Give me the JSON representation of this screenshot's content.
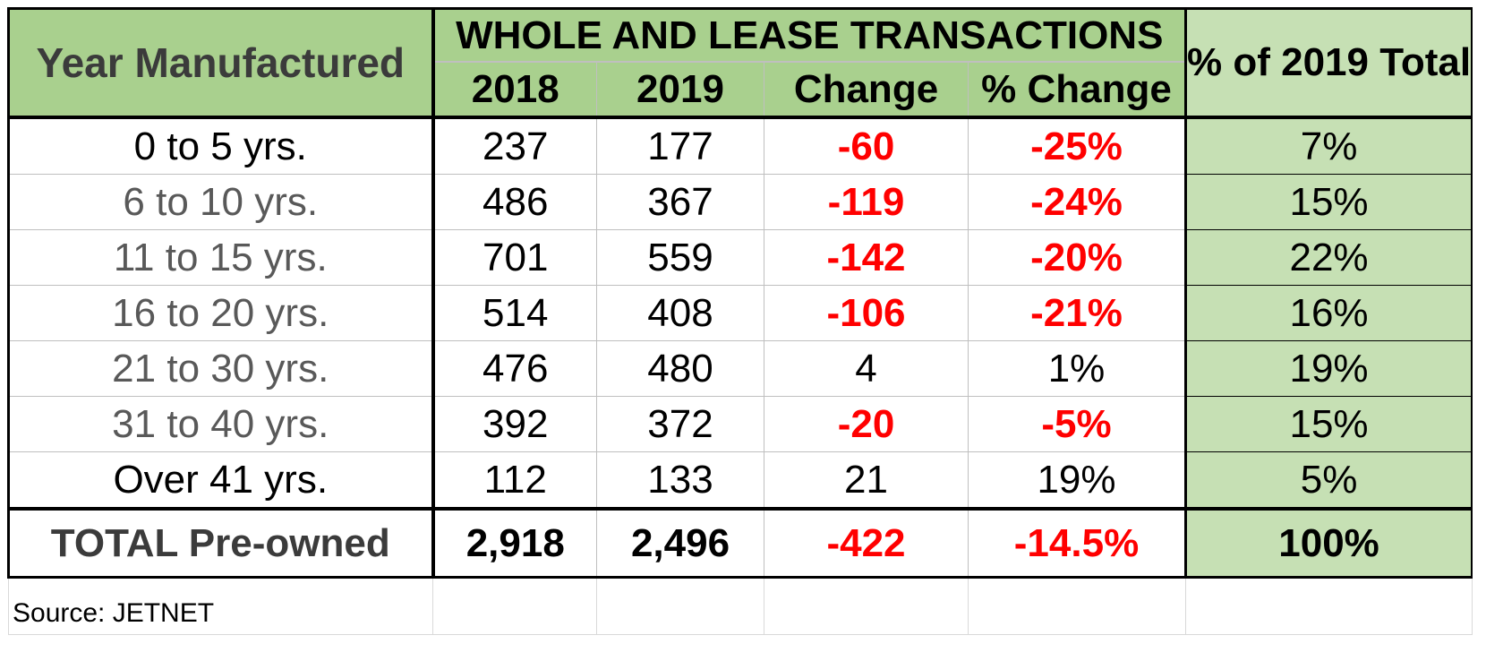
{
  "header": {
    "year_label": "Year Manufactured",
    "group_label": "WHOLE AND LEASE TRANSACTIONS",
    "columns": [
      "2018",
      "2019",
      "Change",
      "% Change"
    ],
    "pct_total_label": "% of 2019 Total"
  },
  "rows": [
    {
      "label": "0 to 5 yrs.",
      "y2018": "237",
      "y2019": "177",
      "change": "-60",
      "pct_change": "-25%",
      "pct_total": "7%"
    },
    {
      "label": "6 to 10 yrs.",
      "y2018": "486",
      "y2019": "367",
      "change": "-119",
      "pct_change": "-24%",
      "pct_total": "15%"
    },
    {
      "label": "11 to 15 yrs.",
      "y2018": "701",
      "y2019": "559",
      "change": "-142",
      "pct_change": "-20%",
      "pct_total": "22%"
    },
    {
      "label": "16 to 20 yrs.",
      "y2018": "514",
      "y2019": "408",
      "change": "-106",
      "pct_change": "-21%",
      "pct_total": "16%"
    },
    {
      "label": "21 to 30 yrs.",
      "y2018": "476",
      "y2019": "480",
      "change": "4",
      "pct_change": "1%",
      "pct_total": "19%"
    },
    {
      "label": "31 to 40 yrs.",
      "y2018": "392",
      "y2019": "372",
      "change": "-20",
      "pct_change": "-5%",
      "pct_total": "15%"
    },
    {
      "label": "Over 41 yrs.",
      "y2018": "112",
      "y2019": "133",
      "change": "21",
      "pct_change": "19%",
      "pct_total": "5%"
    }
  ],
  "total": {
    "label": "TOTAL Pre-owned",
    "y2018": "2,918",
    "y2019": "2,496",
    "change": "-422",
    "pct_change": "-14.5%",
    "pct_total": "100%"
  },
  "source": "Source: JETNET",
  "colors": {
    "header_green": "#a9d08e",
    "light_green": "#c6e0b4",
    "negative_red": "#ff0000"
  }
}
